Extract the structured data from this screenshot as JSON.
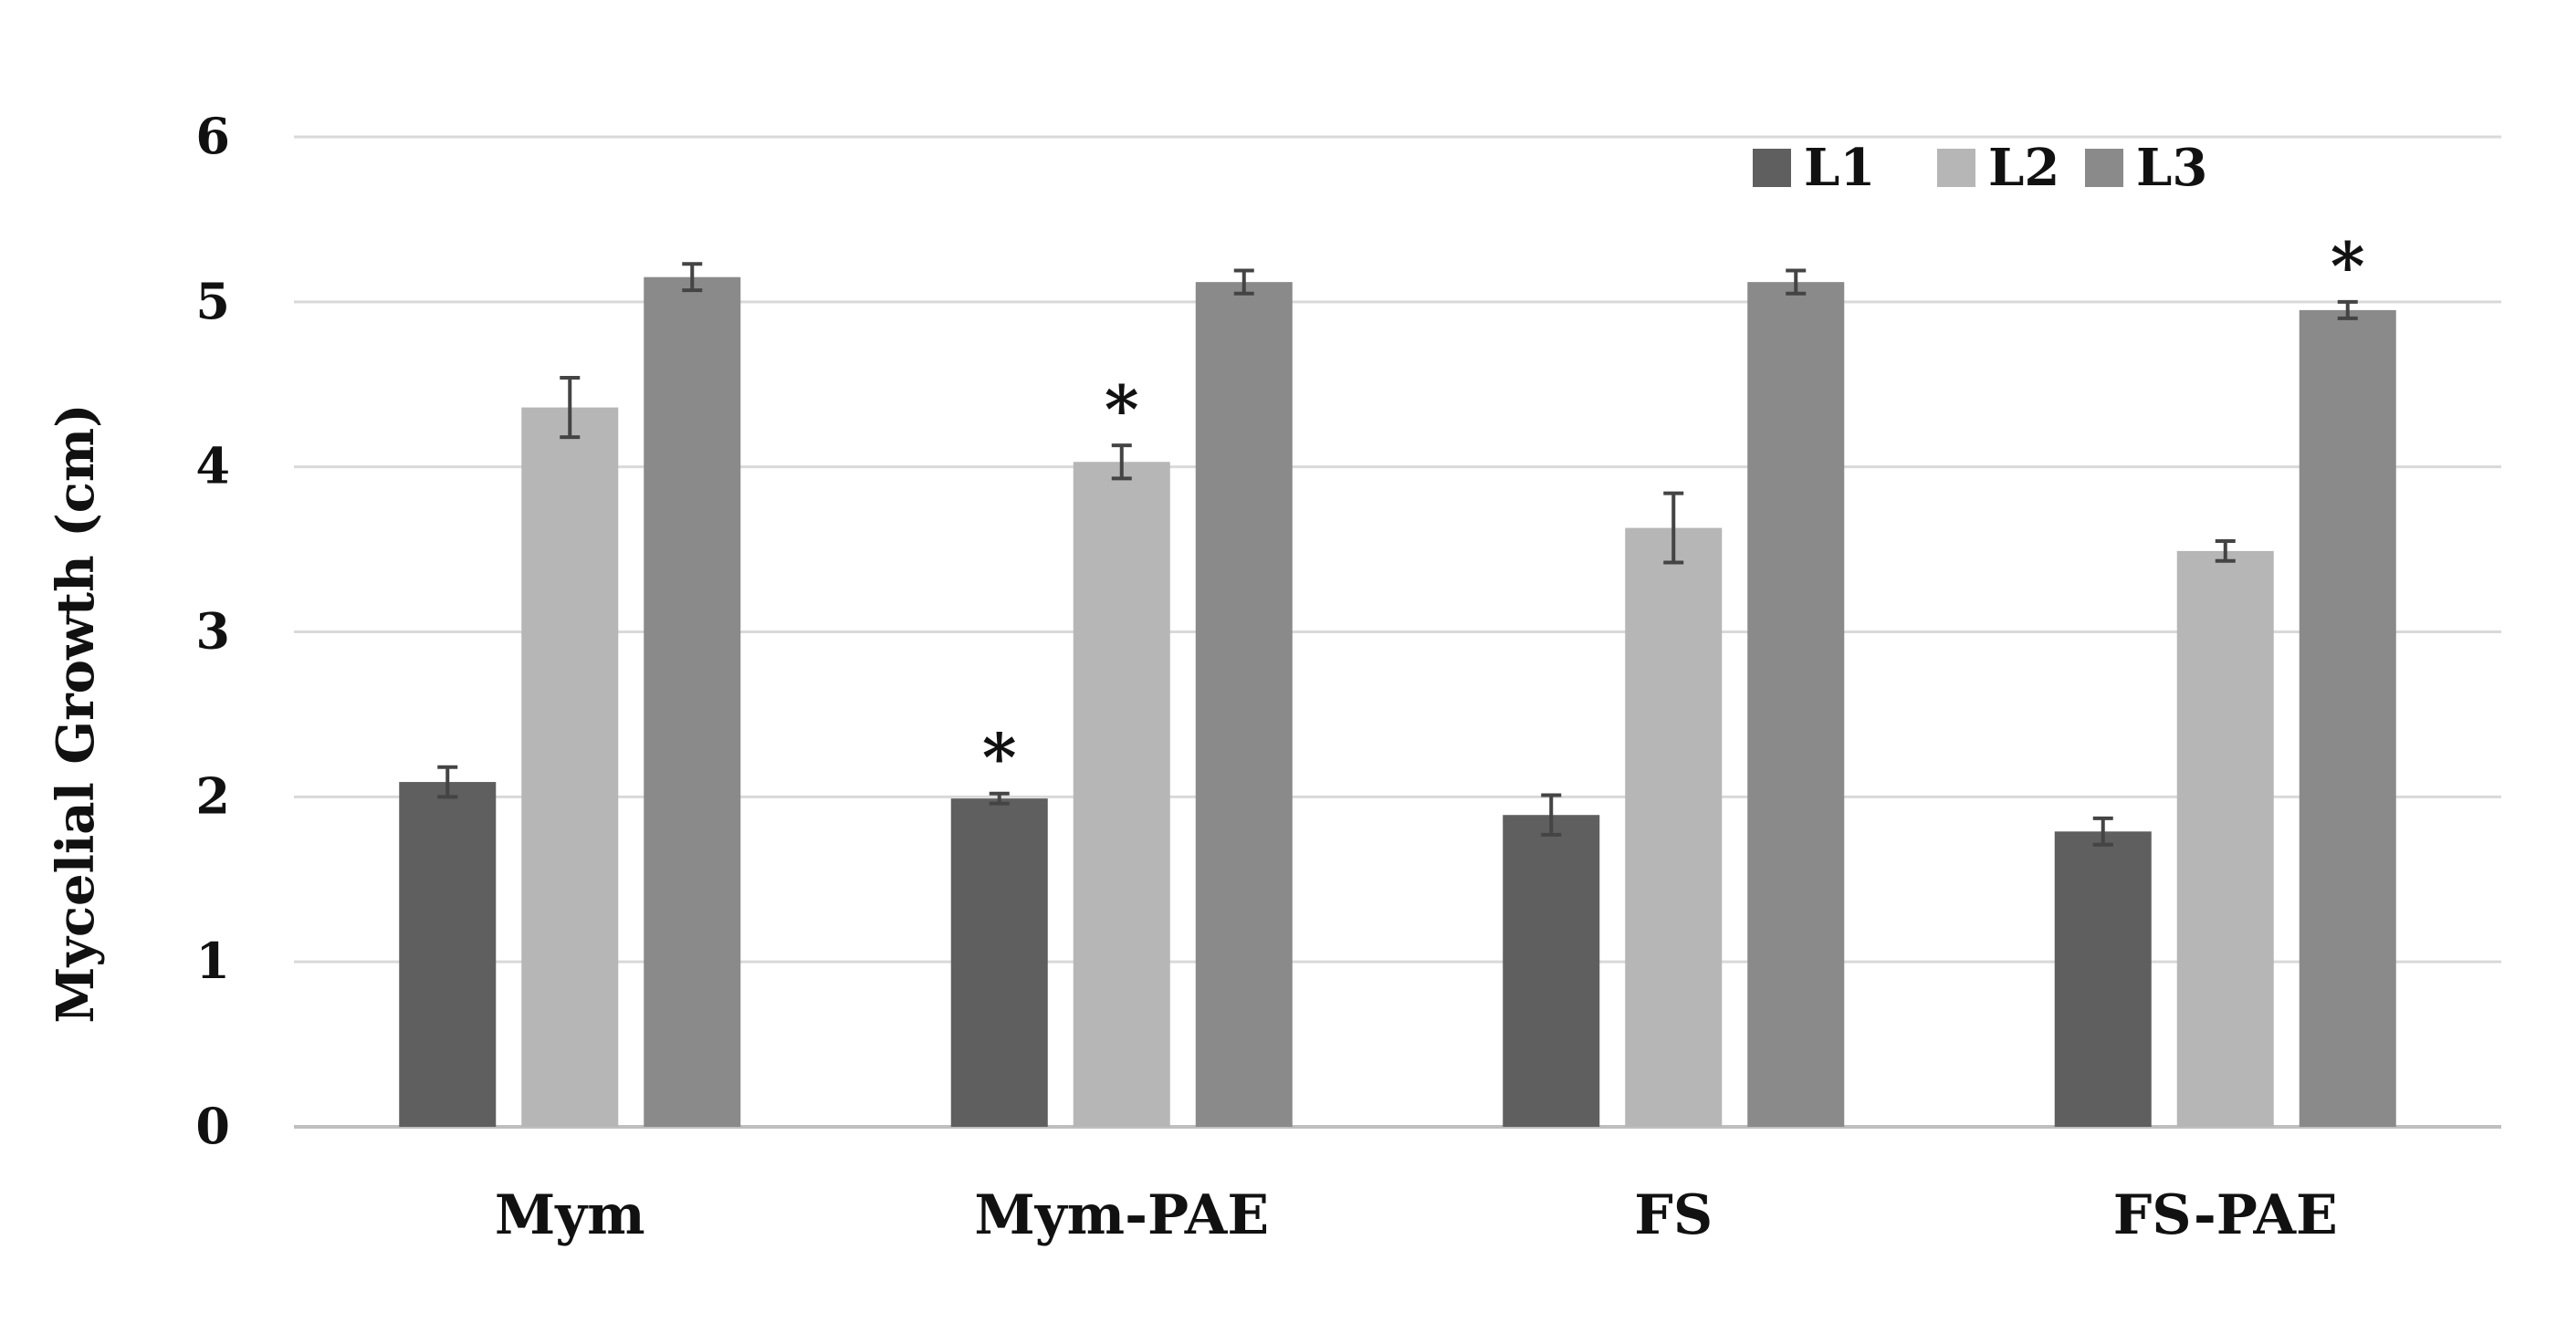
{
  "chart_data": {
    "type": "bar",
    "title": "",
    "xlabel": "",
    "ylabel": "Mycelial Growth (cm)",
    "ylim": [
      0,
      6
    ],
    "yticks": [
      0,
      1,
      2,
      3,
      4,
      5,
      6
    ],
    "grid": true,
    "legend_position": "top-right",
    "categories": [
      "Mym",
      "Mym-PAE",
      "FS",
      "FS-PAE"
    ],
    "series": [
      {
        "name": "L1",
        "color": "#5f5f5f",
        "values": [
          2.09,
          1.99,
          1.89,
          1.79
        ],
        "errors": [
          0.09,
          0.03,
          0.12,
          0.08
        ],
        "significant": [
          false,
          true,
          false,
          false
        ]
      },
      {
        "name": "L2",
        "color": "#b6b6b6",
        "values": [
          4.36,
          4.03,
          3.63,
          3.49
        ],
        "errors": [
          0.18,
          0.1,
          0.21,
          0.06
        ],
        "significant": [
          false,
          true,
          false,
          false
        ]
      },
      {
        "name": "L3",
        "color": "#8a8a8a",
        "values": [
          5.15,
          5.12,
          5.12,
          4.95
        ],
        "errors": [
          0.08,
          0.07,
          0.07,
          0.05
        ],
        "significant": [
          false,
          false,
          false,
          true
        ]
      }
    ],
    "significance_marker": "*"
  }
}
